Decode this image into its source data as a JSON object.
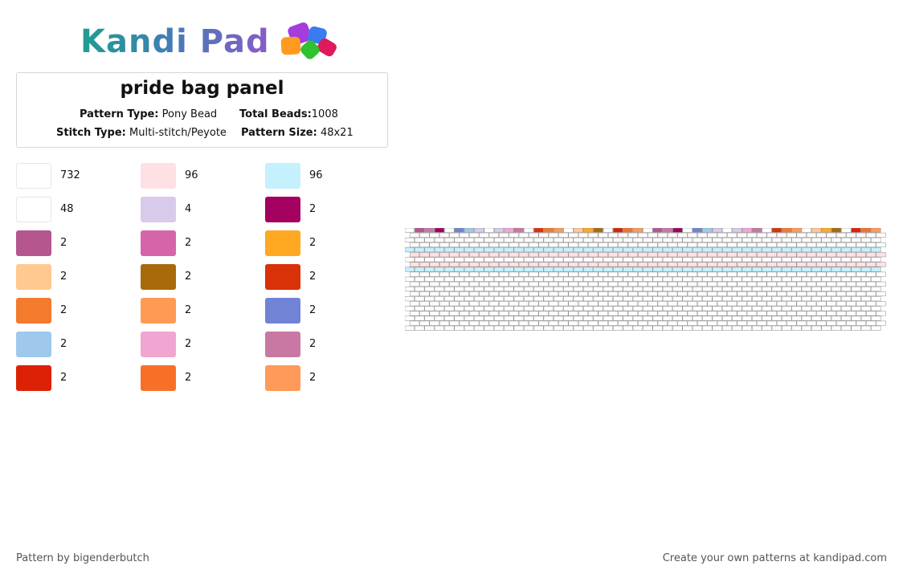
{
  "brand": {
    "name": "Kandi Pad",
    "logo_colors": [
      "#1f9e8f",
      "#3f7fb4",
      "#8a5ac8"
    ],
    "bead_colors": [
      "#a53ddc",
      "#ff9a1f",
      "#3a7bf2",
      "#e0185c",
      "#2fc12f"
    ]
  },
  "pattern": {
    "title": "pride bag panel",
    "type_label": "Pattern Type:",
    "type_value": "Pony Bead",
    "beads_label": "Total Beads:",
    "beads_value": "1008",
    "stitch_label": "Stitch Type:",
    "stitch_value": "Multi-stitch/Peyote",
    "size_label": "Pattern Size:",
    "size_value": "48x21"
  },
  "palette": [
    {
      "color": "#ffffff",
      "count": "732"
    },
    {
      "color": "#ffe0e5",
      "count": "96"
    },
    {
      "color": "#c4f1fd",
      "count": "96"
    },
    {
      "color": "#ffffff",
      "count": "48"
    },
    {
      "color": "#d9c9ea",
      "count": "4"
    },
    {
      "color": "#a4005f",
      "count": "2"
    },
    {
      "color": "#b65690",
      "count": "2"
    },
    {
      "color": "#d565a8",
      "count": "2"
    },
    {
      "color": "#ffa922",
      "count": "2"
    },
    {
      "color": "#ffc98f",
      "count": "2"
    },
    {
      "color": "#a76b0c",
      "count": "2"
    },
    {
      "color": "#d93108",
      "count": "2"
    },
    {
      "color": "#f47a2e",
      "count": "2"
    },
    {
      "color": "#ff9a55",
      "count": "2"
    },
    {
      "color": "#7083d4",
      "count": "2"
    },
    {
      "color": "#9ec8ec",
      "count": "2"
    },
    {
      "color": "#f0a6d0",
      "count": "2"
    },
    {
      "color": "#c878a2",
      "count": "2"
    },
    {
      "color": "#dd2104",
      "count": "2"
    },
    {
      "color": "#f87028",
      "count": "2"
    },
    {
      "color": "#ff9a58",
      "count": "2"
    }
  ],
  "grid": {
    "columns": 48,
    "rows": 21,
    "stripe_colors": {
      "light_blue": "#c4f1fd",
      "pink": "#ffe0e5"
    },
    "top_row_groups": [
      [
        "#b65690",
        "#c878a2",
        "#a4005f"
      ],
      [
        "#7083d4",
        "#9ec8ec",
        "#d9c9ea"
      ],
      [
        "#d9c9ea",
        "#f0a6d0",
        "#c878a2"
      ],
      [
        "#d93108",
        "#f47a2e",
        "#ff9a55"
      ],
      [
        "#ffc98f",
        "#ffa922",
        "#a76b0c"
      ],
      [
        "#dd2104",
        "#f87028",
        "#ff9a58"
      ]
    ]
  },
  "footer": {
    "author": "Pattern by bigenderbutch",
    "promo": "Create your own patterns at kandipad.com"
  }
}
